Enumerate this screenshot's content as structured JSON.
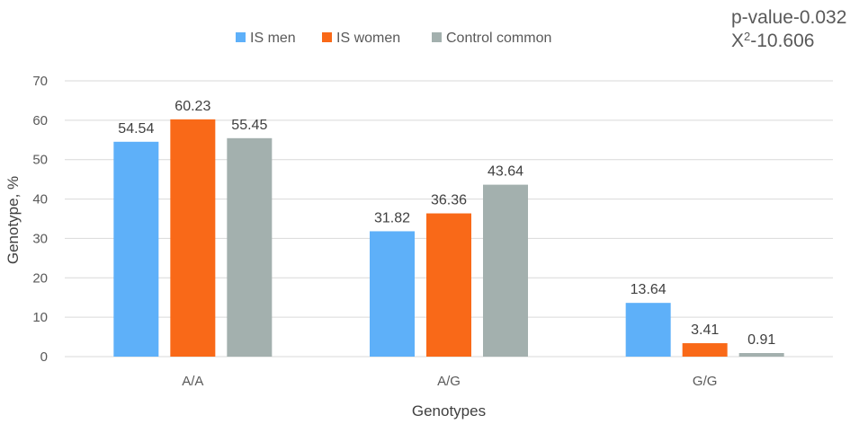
{
  "chart_data": {
    "type": "bar",
    "title": "",
    "xlabel": "Genotypes",
    "ylabel": "Genotype, %",
    "categories": [
      "A/A",
      "A/G",
      "G/G"
    ],
    "series": [
      {
        "name": "IS men",
        "color": "#5eb0f9",
        "values": [
          54.54,
          31.82,
          13.64
        ],
        "labels": [
          "54.54",
          "31.82",
          "13.64"
        ]
      },
      {
        "name": "IS women",
        "color": "#f96918",
        "values": [
          60.23,
          36.36,
          3.41
        ],
        "labels": [
          "60.23",
          "36.36",
          "3.41"
        ]
      },
      {
        "name": "Control common",
        "color": "#a3b0ae",
        "values": [
          55.45,
          43.64,
          0.91
        ],
        "labels": [
          "55.45",
          "43.64",
          "0.91"
        ]
      }
    ],
    "ylim": [
      0,
      70
    ],
    "yticks": [
      0,
      10,
      20,
      30,
      40,
      50,
      60,
      70
    ],
    "ytick_labels": [
      "0",
      "10",
      "20",
      "30",
      "40",
      "50",
      "60",
      "70"
    ],
    "grid": true,
    "legend_position": "top-center",
    "annotations": {
      "p_value": "p-value-0.032",
      "chi_square_prefix": "X",
      "chi_square_superscript": "2",
      "chi_square_value": "-10.606"
    }
  }
}
